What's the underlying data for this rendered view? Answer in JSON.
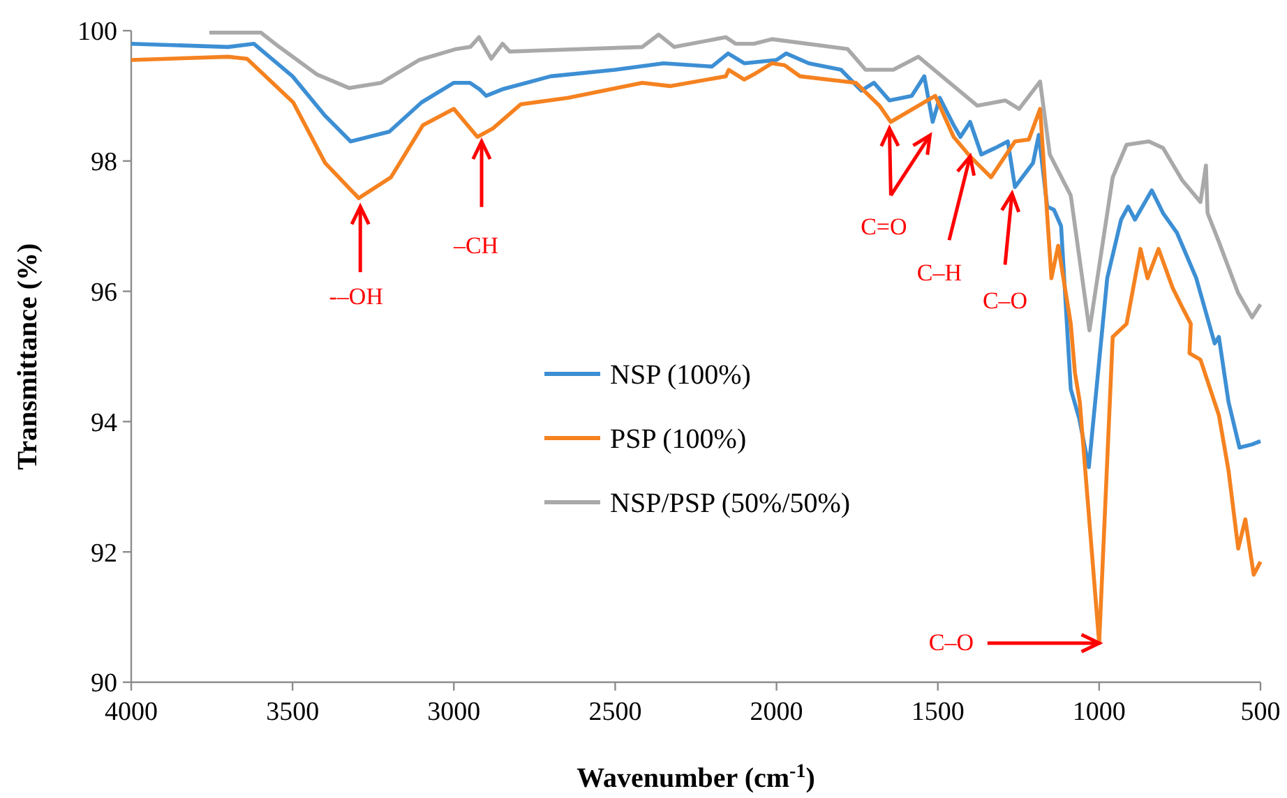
{
  "chart_data": {
    "type": "line",
    "xlabel": "Wavenumber (cm$^{-1}$)",
    "ylabel": "Transmittance (%)",
    "xlim": [
      4000,
      500
    ],
    "xticks": [
      4000,
      3500,
      3000,
      2500,
      2000,
      1500,
      1000,
      500
    ],
    "ylim": [
      90,
      100
    ],
    "yticks": [
      90,
      92,
      94,
      96,
      98,
      100
    ],
    "grid": false,
    "legend": "center",
    "marker": "none",
    "line_style": "solid",
    "series": [
      {
        "name": "NSP (100%)",
        "color": "#3d8fd4",
        "x": [
          4000,
          3700,
          3620,
          3500,
          3400,
          3320,
          3200,
          3100,
          3000,
          2950,
          2920,
          2900,
          2850,
          2700,
          2500,
          2350,
          2200,
          2150,
          2100,
          2000,
          1970,
          1900,
          1800,
          1737,
          1698,
          1650,
          1581,
          1542,
          1516,
          1494,
          1451,
          1430,
          1400,
          1365,
          1322,
          1283,
          1261,
          1205,
          1187,
          1161,
          1140,
          1118,
          1088,
          1062,
          1032,
          975,
          932,
          910,
          889,
          837,
          802,
          759,
          699,
          642,
          629,
          599,
          565,
          526,
          500
        ],
        "values": [
          99.8,
          99.75,
          99.8,
          99.3,
          98.7,
          98.3,
          98.45,
          98.9,
          99.2,
          99.2,
          99.1,
          99.0,
          99.1,
          99.3,
          99.4,
          99.5,
          99.45,
          99.65,
          99.5,
          99.55,
          99.65,
          99.5,
          99.4,
          99.08,
          99.2,
          98.93,
          99.0,
          99.3,
          98.6,
          98.97,
          98.55,
          98.37,
          98.6,
          98.1,
          98.2,
          98.3,
          97.6,
          97.97,
          98.4,
          97.3,
          97.25,
          97.0,
          94.5,
          94.05,
          93.3,
          96.2,
          97.1,
          97.3,
          97.1,
          97.55,
          97.2,
          96.9,
          96.2,
          95.2,
          95.3,
          94.3,
          93.6,
          93.65,
          93.7
        ]
      },
      {
        "name": "PSP (100%)",
        "color": "#f58220",
        "x": [
          4000,
          3700,
          3641,
          3498,
          3399,
          3295,
          3195,
          3096,
          3000,
          2927,
          2879,
          2793,
          2646,
          2416,
          2330,
          2157,
          2148,
          2100,
          2070,
          2014,
          1975,
          1927,
          1754,
          1681,
          1646,
          1508,
          1451,
          1400,
          1335,
          1261,
          1218,
          1183,
          1148,
          1127,
          1088,
          1075,
          1060,
          1000,
          958,
          915,
          872,
          850,
          816,
          772,
          742,
          716,
          720,
          686,
          629,
          599,
          569,
          547,
          521,
          500
        ],
        "values": [
          99.55,
          99.6,
          99.57,
          98.9,
          97.97,
          97.43,
          97.75,
          98.55,
          98.8,
          98.37,
          98.5,
          98.87,
          98.97,
          99.2,
          99.15,
          99.3,
          99.4,
          99.25,
          99.33,
          99.5,
          99.47,
          99.3,
          99.2,
          98.85,
          98.6,
          99.0,
          98.37,
          98.07,
          97.75,
          98.3,
          98.33,
          98.8,
          96.2,
          96.7,
          95.5,
          94.75,
          94.3,
          90.6,
          95.3,
          95.5,
          96.65,
          96.2,
          96.65,
          96.05,
          95.75,
          95.5,
          95.05,
          94.95,
          94.1,
          93.25,
          92.05,
          92.5,
          91.65,
          91.85
        ]
      },
      {
        "name": "NSP/PSP (50%/50%)",
        "color": "#a9a9a9",
        "x": [
          3758,
          3598,
          3541,
          3425,
          3325,
          3225,
          3108,
          2992,
          2949,
          2922,
          2884,
          2849,
          2827,
          2416,
          2365,
          2317,
          2157,
          2127,
          2070,
          2014,
          1780,
          1724,
          1638,
          1560,
          1451,
          1378,
          1291,
          1248,
          1183,
          1153,
          1088,
          1030,
          958,
          915,
          846,
          802,
          742,
          686,
          669,
          664,
          629,
          569,
          526,
          500
        ],
        "values": [
          99.97,
          99.97,
          99.75,
          99.33,
          99.12,
          99.2,
          99.55,
          99.72,
          99.75,
          99.9,
          99.57,
          99.8,
          99.68,
          99.75,
          99.94,
          99.75,
          99.9,
          99.8,
          99.8,
          99.87,
          99.72,
          99.4,
          99.4,
          99.6,
          99.15,
          98.85,
          98.93,
          98.8,
          99.22,
          98.1,
          97.47,
          95.4,
          97.75,
          98.25,
          98.3,
          98.2,
          97.7,
          97.37,
          97.93,
          97.2,
          96.76,
          95.97,
          95.6,
          95.8
        ]
      }
    ],
    "annotations": [
      {
        "text": "-–OH",
        "x": 3290,
        "y": 97.3
      },
      {
        "text": "–CH",
        "x": 2914,
        "y": 98.3
      },
      {
        "text": "C=O",
        "x": 1650,
        "y": 98.5
      },
      {
        "text": "C–H",
        "x": 1400,
        "y": 98.07
      },
      {
        "text": "C–O",
        "x": 1270,
        "y": 97.5
      },
      {
        "text": "C–O",
        "x": 1000,
        "y": 90.6
      }
    ]
  }
}
